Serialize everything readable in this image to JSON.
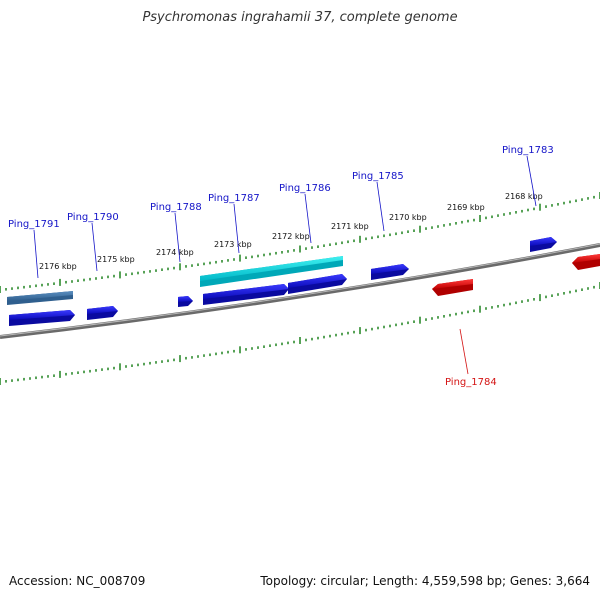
{
  "title": "Psychromonas ingrahamii 37, complete genome",
  "footer": {
    "accession": "Accession: NC_008709",
    "summary": "Topology: circular; Length: 4,559,598 bp; Genes: 3,664"
  },
  "colors": {
    "backbone": "#808080",
    "tick": "#2e8b2e",
    "forward_gene": "#1010e0",
    "reverse_gene": "#e01010",
    "highlight": "#00e0e0",
    "rna": "#4a7fb0",
    "forward_label": "#1414c8",
    "reverse_label": "#d41414"
  },
  "scale_labels": [
    "2176 kbp",
    "2175 kbp",
    "2174 kbp",
    "2173 kbp",
    "2172 kbp",
    "2171 kbp",
    "2170 kbp",
    "2169 kbp",
    "2168 kbp"
  ],
  "gene_labels": [
    {
      "text": "Ping_1791",
      "strand": "forward"
    },
    {
      "text": "Ping_1790",
      "strand": "forward"
    },
    {
      "text": "Ping_1788",
      "strand": "forward"
    },
    {
      "text": "Ping_1787",
      "strand": "forward"
    },
    {
      "text": "Ping_1786",
      "strand": "forward"
    },
    {
      "text": "Ping_1785",
      "strand": "forward"
    },
    {
      "text": "Ping_1783",
      "strand": "forward"
    },
    {
      "text": "Ping_1784",
      "strand": "reverse"
    }
  ]
}
